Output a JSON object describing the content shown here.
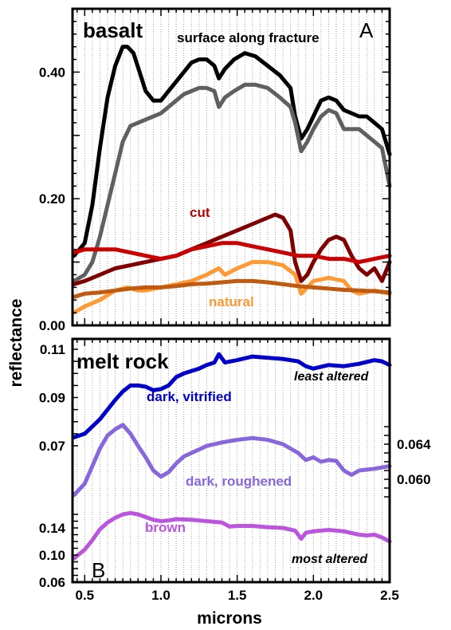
{
  "chart_data": [
    {
      "type": "line",
      "panel_letter": "A",
      "title": "basalt",
      "subtitle": "surface along fracture",
      "ylabel": "reflectance",
      "xlim": [
        0.42,
        2.5
      ],
      "ylim": [
        0.0,
        0.5
      ],
      "yticks": [
        {
          "v": 0.0,
          "label": "0.00"
        },
        {
          "v": 0.2,
          "label": "0.20"
        },
        {
          "v": 0.4,
          "label": "0.40"
        }
      ],
      "annotations": [
        {
          "text": "cut",
          "color": "#c00000"
        },
        {
          "text": "natural",
          "color": "#ff9933"
        }
      ],
      "series": [
        {
          "color": "#000000",
          "x": [
            0.43,
            0.5,
            0.55,
            0.6,
            0.65,
            0.7,
            0.75,
            0.78,
            0.82,
            0.86,
            0.9,
            0.95,
            1.0,
            1.05,
            1.1,
            1.15,
            1.2,
            1.25,
            1.3,
            1.35,
            1.38,
            1.42,
            1.48,
            1.55,
            1.62,
            1.7,
            1.78,
            1.85,
            1.88,
            1.92,
            1.96,
            2.0,
            2.05,
            2.1,
            2.15,
            2.2,
            2.25,
            2.3,
            2.35,
            2.4,
            2.45,
            2.5
          ],
          "y": [
            0.11,
            0.13,
            0.19,
            0.28,
            0.36,
            0.41,
            0.44,
            0.44,
            0.43,
            0.4,
            0.37,
            0.355,
            0.355,
            0.37,
            0.385,
            0.4,
            0.415,
            0.42,
            0.42,
            0.41,
            0.39,
            0.405,
            0.42,
            0.43,
            0.425,
            0.41,
            0.395,
            0.375,
            0.33,
            0.295,
            0.31,
            0.33,
            0.355,
            0.36,
            0.355,
            0.34,
            0.335,
            0.33,
            0.33,
            0.32,
            0.31,
            0.27
          ]
        },
        {
          "color": "#606060",
          "x": [
            0.43,
            0.5,
            0.55,
            0.6,
            0.65,
            0.7,
            0.75,
            0.8,
            0.85,
            0.9,
            0.95,
            1.0,
            1.05,
            1.1,
            1.15,
            1.2,
            1.25,
            1.3,
            1.35,
            1.38,
            1.42,
            1.48,
            1.55,
            1.62,
            1.7,
            1.78,
            1.85,
            1.88,
            1.92,
            1.96,
            2.0,
            2.05,
            2.1,
            2.15,
            2.2,
            2.25,
            2.3,
            2.35,
            2.4,
            2.45,
            2.5
          ],
          "y": [
            0.07,
            0.08,
            0.1,
            0.14,
            0.19,
            0.24,
            0.29,
            0.315,
            0.32,
            0.325,
            0.33,
            0.335,
            0.345,
            0.355,
            0.365,
            0.37,
            0.375,
            0.375,
            0.37,
            0.345,
            0.36,
            0.37,
            0.38,
            0.38,
            0.375,
            0.36,
            0.345,
            0.32,
            0.275,
            0.29,
            0.31,
            0.33,
            0.34,
            0.335,
            0.31,
            0.31,
            0.31,
            0.3,
            0.29,
            0.28,
            0.22
          ]
        },
        {
          "color": "#800000",
          "x": [
            0.43,
            0.5,
            0.6,
            0.7,
            0.8,
            0.9,
            1.0,
            1.1,
            1.2,
            1.3,
            1.4,
            1.5,
            1.6,
            1.7,
            1.75,
            1.8,
            1.85,
            1.88,
            1.92,
            1.96,
            2.0,
            2.05,
            2.1,
            2.15,
            2.2,
            2.25,
            2.3,
            2.35,
            2.4,
            2.45,
            2.5
          ],
          "y": [
            0.065,
            0.07,
            0.08,
            0.09,
            0.095,
            0.1,
            0.105,
            0.11,
            0.12,
            0.13,
            0.14,
            0.15,
            0.16,
            0.17,
            0.175,
            0.17,
            0.15,
            0.1,
            0.07,
            0.08,
            0.1,
            0.12,
            0.135,
            0.14,
            0.135,
            0.11,
            0.09,
            0.08,
            0.09,
            0.07,
            0.1
          ]
        },
        {
          "color": "#cc0000",
          "x": [
            0.43,
            0.5,
            0.6,
            0.7,
            0.8,
            0.9,
            1.0,
            1.1,
            1.2,
            1.3,
            1.4,
            1.5,
            1.6,
            1.7,
            1.8,
            1.9,
            2.0,
            2.1,
            2.2,
            2.3,
            2.4,
            2.5
          ],
          "y": [
            0.115,
            0.12,
            0.12,
            0.12,
            0.115,
            0.11,
            0.105,
            0.11,
            0.12,
            0.125,
            0.13,
            0.13,
            0.125,
            0.12,
            0.115,
            0.11,
            0.11,
            0.105,
            0.105,
            0.1,
            0.105,
            0.11
          ]
        },
        {
          "color": "#ff9933",
          "x": [
            0.43,
            0.5,
            0.6,
            0.7,
            0.78,
            0.85,
            0.9,
            1.0,
            1.1,
            1.2,
            1.3,
            1.38,
            1.42,
            1.5,
            1.6,
            1.7,
            1.8,
            1.88,
            1.92,
            1.96,
            2.0,
            2.1,
            2.2,
            2.25,
            2.3,
            2.4,
            2.5
          ],
          "y": [
            0.02,
            0.03,
            0.04,
            0.055,
            0.06,
            0.055,
            0.055,
            0.06,
            0.065,
            0.07,
            0.08,
            0.09,
            0.08,
            0.09,
            0.1,
            0.1,
            0.095,
            0.08,
            0.05,
            0.06,
            0.07,
            0.075,
            0.07,
            0.055,
            0.05,
            0.055,
            0.05
          ]
        },
        {
          "color": "#c05a10",
          "x": [
            0.43,
            0.5,
            0.6,
            0.7,
            0.8,
            0.9,
            1.0,
            1.1,
            1.2,
            1.3,
            1.4,
            1.5,
            1.6,
            1.7,
            1.8,
            1.9,
            2.0,
            2.1,
            2.2,
            2.3,
            2.4,
            2.5
          ],
          "y": [
            0.045,
            0.05,
            0.052,
            0.055,
            0.058,
            0.06,
            0.06,
            0.062,
            0.065,
            0.066,
            0.068,
            0.07,
            0.07,
            0.068,
            0.065,
            0.062,
            0.06,
            0.058,
            0.056,
            0.055,
            0.054,
            0.052
          ]
        }
      ]
    },
    {
      "type": "line",
      "panel_letter": "B",
      "title": "melt rock",
      "xlabel": "microns",
      "xlim": [
        0.42,
        2.5
      ],
      "xticks": [
        {
          "v": 0.5,
          "label": "0.5"
        },
        {
          "v": 1.0,
          "label": "1.0"
        },
        {
          "v": 1.5,
          "label": "1.5"
        },
        {
          "v": 2.0,
          "label": "2.0"
        },
        {
          "v": 2.5,
          "label": "2.5"
        }
      ],
      "left_axis_top": {
        "range": [
          0.07,
          0.11
        ],
        "ticks": [
          {
            "v": 0.07,
            "label": "0.07"
          },
          {
            "v": 0.09,
            "label": "0.09"
          },
          {
            "v": 0.11,
            "label": "0.11"
          }
        ]
      },
      "right_axis": {
        "range": [
          0.0575,
          0.066
        ],
        "ticks": [
          {
            "v": 0.06,
            "label": "0.060"
          },
          {
            "v": 0.064,
            "label": "0.064"
          }
        ]
      },
      "left_axis_bottom": {
        "range": [
          0.06,
          0.165
        ],
        "ticks": [
          {
            "v": 0.06,
            "label": "0.06"
          },
          {
            "v": 0.1,
            "label": "0.10"
          },
          {
            "v": 0.14,
            "label": "0.14"
          }
        ]
      },
      "annotations": [
        {
          "text": "least altered",
          "color": "#000000"
        },
        {
          "text": "most altered",
          "color": "#000000"
        }
      ],
      "series": [
        {
          "name": "dark, vitrified",
          "color": "#0000cc",
          "axis": "left_top",
          "x": [
            0.43,
            0.5,
            0.55,
            0.6,
            0.65,
            0.7,
            0.75,
            0.8,
            0.85,
            0.9,
            0.95,
            1.0,
            1.05,
            1.1,
            1.15,
            1.2,
            1.25,
            1.3,
            1.35,
            1.38,
            1.42,
            1.5,
            1.6,
            1.7,
            1.8,
            1.9,
            1.95,
            2.0,
            2.1,
            2.2,
            2.3,
            2.4,
            2.45,
            2.5
          ],
          "y": [
            0.0735,
            0.075,
            0.078,
            0.081,
            0.085,
            0.089,
            0.0925,
            0.095,
            0.095,
            0.0945,
            0.093,
            0.0935,
            0.095,
            0.0985,
            0.1,
            0.101,
            0.102,
            0.1035,
            0.1045,
            0.108,
            0.1045,
            0.1055,
            0.107,
            0.1065,
            0.106,
            0.105,
            0.103,
            0.102,
            0.1035,
            0.103,
            0.104,
            0.1055,
            0.105,
            0.1035
          ]
        },
        {
          "name": "dark, roughened",
          "color": "#8866dd",
          "axis": "right",
          "x": [
            0.43,
            0.5,
            0.55,
            0.6,
            0.65,
            0.7,
            0.75,
            0.8,
            0.85,
            0.9,
            0.95,
            1.0,
            1.05,
            1.1,
            1.15,
            1.2,
            1.3,
            1.4,
            1.5,
            1.6,
            1.7,
            1.8,
            1.9,
            1.95,
            2.0,
            2.05,
            2.1,
            2.15,
            2.2,
            2.25,
            2.3,
            2.4,
            2.5
          ],
          "y": [
            0.0582,
            0.0595,
            0.0615,
            0.0635,
            0.065,
            0.0657,
            0.0662,
            0.0652,
            0.0638,
            0.0625,
            0.061,
            0.0603,
            0.0608,
            0.0618,
            0.0626,
            0.063,
            0.0638,
            0.0642,
            0.0645,
            0.0647,
            0.0645,
            0.064,
            0.063,
            0.0622,
            0.0625,
            0.062,
            0.0622,
            0.0621,
            0.061,
            0.0605,
            0.061,
            0.0612,
            0.0615
          ]
        },
        {
          "name": "brown",
          "color": "#bb55dd",
          "axis": "left_bottom",
          "x": [
            0.43,
            0.5,
            0.55,
            0.6,
            0.65,
            0.7,
            0.75,
            0.8,
            0.85,
            0.9,
            0.95,
            1.0,
            1.05,
            1.1,
            1.2,
            1.3,
            1.4,
            1.45,
            1.5,
            1.6,
            1.7,
            1.8,
            1.88,
            1.92,
            1.95,
            2.0,
            2.1,
            2.2,
            2.3,
            2.35,
            2.4,
            2.45,
            2.5
          ],
          "y": [
            0.095,
            0.108,
            0.122,
            0.138,
            0.148,
            0.155,
            0.16,
            0.162,
            0.16,
            0.156,
            0.152,
            0.15,
            0.151,
            0.153,
            0.152,
            0.15,
            0.148,
            0.142,
            0.143,
            0.143,
            0.141,
            0.14,
            0.136,
            0.124,
            0.133,
            0.135,
            0.137,
            0.135,
            0.13,
            0.129,
            0.13,
            0.126,
            0.12
          ]
        }
      ]
    }
  ]
}
